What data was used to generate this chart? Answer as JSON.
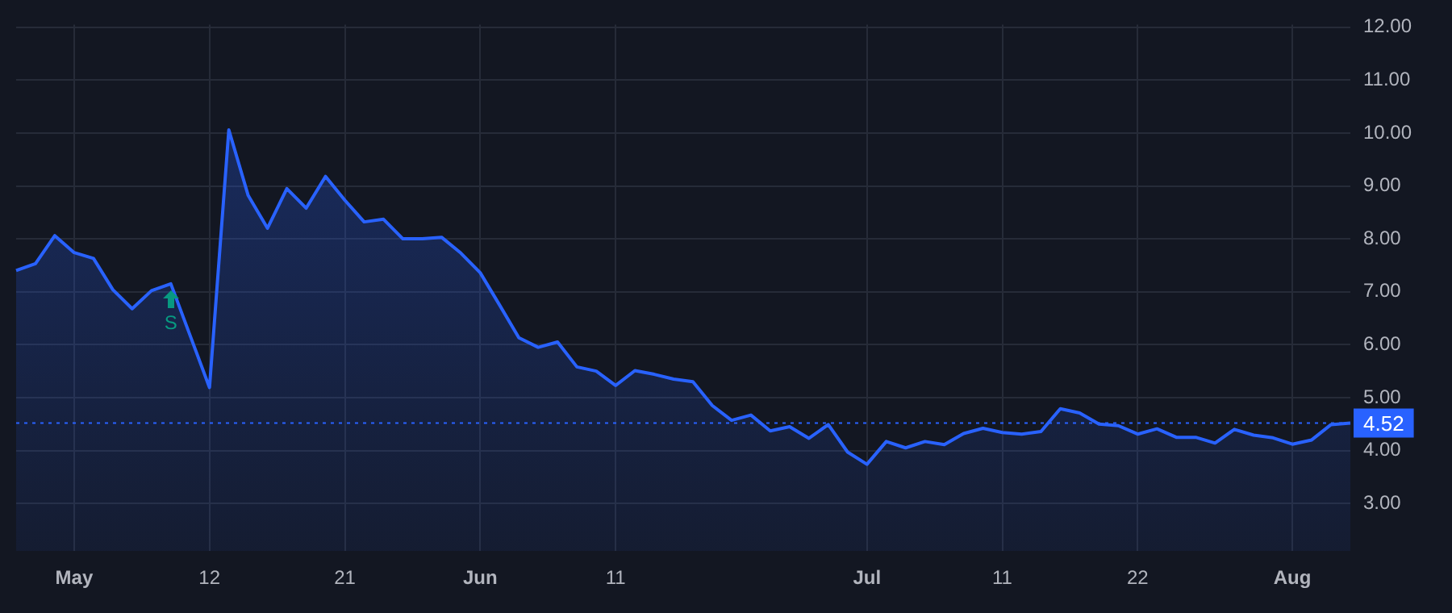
{
  "chart_data": {
    "type": "area",
    "categories": [
      null,
      null,
      null,
      "May",
      null,
      null,
      null,
      null,
      null,
      null,
      "12",
      null,
      null,
      null,
      null,
      null,
      null,
      "21",
      null,
      null,
      null,
      null,
      null,
      null,
      "Jun",
      null,
      null,
      null,
      null,
      null,
      null,
      "11",
      null,
      null,
      null,
      null,
      null,
      null,
      null,
      null,
      null,
      null,
      null,
      null,
      "Jul",
      null,
      null,
      null,
      null,
      null,
      null,
      "11",
      null,
      null,
      null,
      null,
      null,
      null,
      "22",
      null,
      null,
      null,
      null,
      null,
      null,
      null,
      "Aug",
      null,
      null,
      null
    ],
    "series": [
      {
        "color": "#2962ff",
        "values": [
          7.4,
          7.53,
          8.06,
          7.74,
          7.63,
          7.04,
          6.68,
          7.02,
          7.15,
          6.17,
          5.19,
          10.06,
          8.82,
          8.2,
          8.95,
          8.58,
          9.18,
          8.73,
          8.32,
          8.37,
          8.0,
          8.0,
          8.03,
          7.73,
          7.36,
          6.75,
          6.13,
          5.95,
          6.05,
          5.58,
          5.5,
          5.23,
          5.51,
          5.44,
          5.35,
          5.3,
          4.85,
          4.57,
          4.67,
          4.37,
          4.45,
          4.23,
          4.49,
          3.97,
          3.74,
          4.17,
          4.05,
          4.17,
          4.11,
          4.32,
          4.42,
          4.34,
          4.31,
          4.36,
          4.79,
          4.71,
          4.5,
          4.47,
          4.31,
          4.41,
          4.25,
          4.25,
          4.14,
          4.4,
          4.29,
          4.24,
          4.12,
          4.2,
          4.49,
          4.52
        ]
      }
    ],
    "ylim": [
      2.1,
      12.05
    ],
    "yticks": [
      {
        "value": 3,
        "label": "3.00"
      },
      {
        "value": 4,
        "label": "4.00"
      },
      {
        "value": 5,
        "label": "5.00"
      },
      {
        "value": 6,
        "label": "6.00"
      },
      {
        "value": 7,
        "label": "7.00"
      },
      {
        "value": 8,
        "label": "8.00"
      },
      {
        "value": 9,
        "label": "9.00"
      },
      {
        "value": 10,
        "label": "10.00"
      },
      {
        "value": 11,
        "label": "11.00"
      },
      {
        "value": 12,
        "label": "12.00"
      }
    ],
    "ref_lines": [
      {
        "axis": "y",
        "value": 4.52,
        "label": "4.52",
        "color": "#2962ff",
        "line_style": "dotted"
      }
    ],
    "annotations": [
      {
        "text": "S",
        "y": 7.15
      }
    ],
    "grid": true,
    "legend": false,
    "marker": "none",
    "line_style": "solid"
  }
}
